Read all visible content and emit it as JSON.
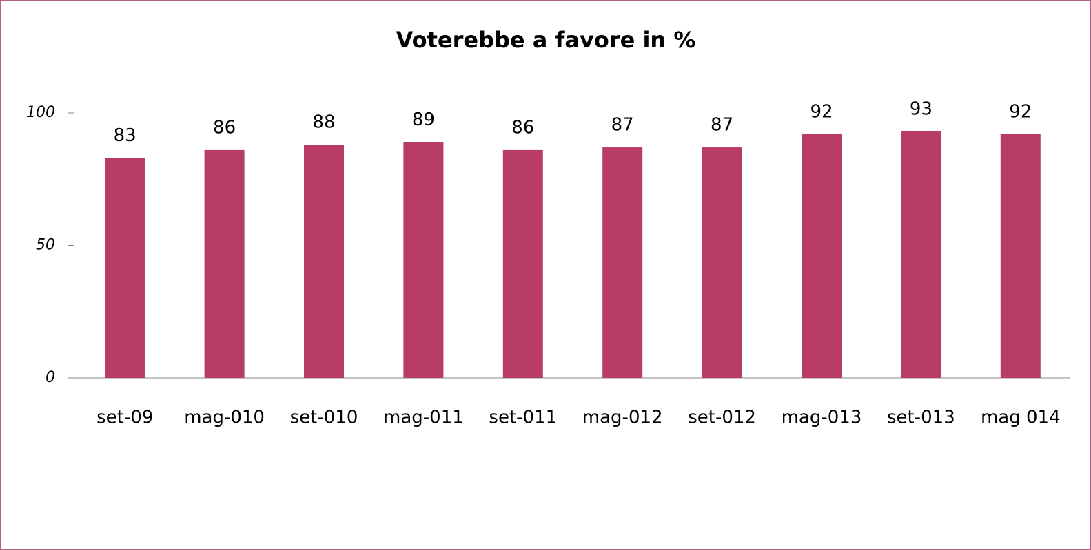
{
  "chart_data": {
    "type": "bar",
    "title": "Voterebbe a favore in %",
    "categories": [
      "set-09",
      "mag-010",
      "set-010",
      "mag-011",
      "set-011",
      "mag-012",
      "set-012",
      "mag-013",
      "set-013",
      "mag 014"
    ],
    "values": [
      83,
      86,
      88,
      89,
      86,
      87,
      87,
      92,
      93,
      92
    ],
    "color": "#b83c64",
    "ylim": [
      0,
      100
    ],
    "yticks": [
      0,
      50,
      100
    ],
    "grid": false
  }
}
